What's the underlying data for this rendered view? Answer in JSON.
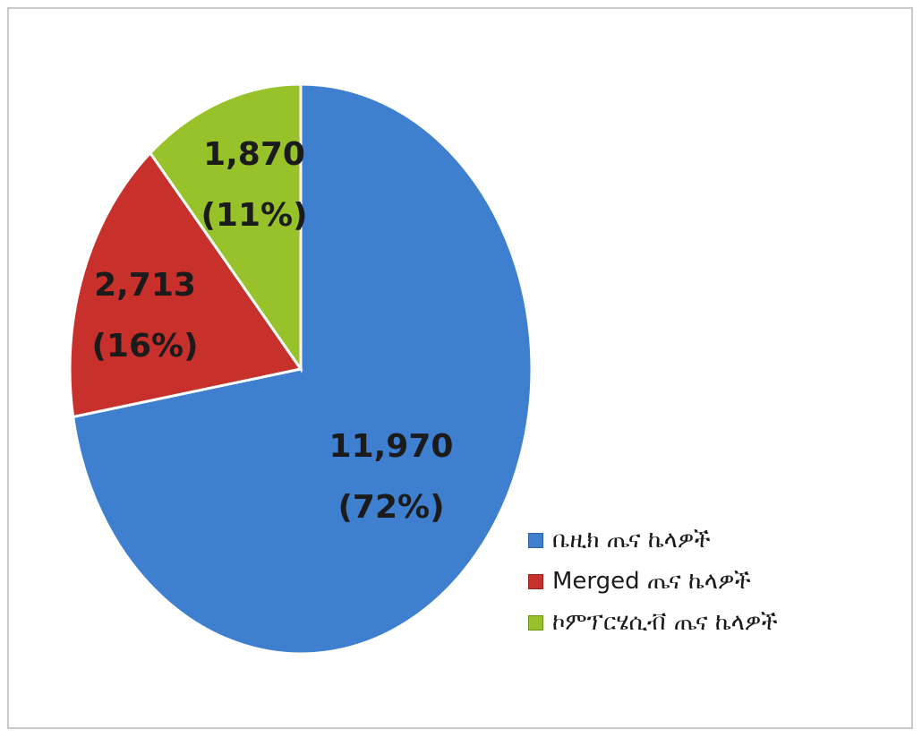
{
  "chart_data": {
    "type": "pie",
    "title": "",
    "slices": [
      {
        "name": "ቤዚክ ጤና ኬላዎች",
        "value": 11970,
        "value_label": "11,970",
        "percent_label": "(72%)",
        "color": "#3f7fd0"
      },
      {
        "name": "Merged ጤና ኬላዎች",
        "value": 2713,
        "value_label": "2,713",
        "percent_label": "(16%)",
        "color": "#c8302c"
      },
      {
        "name": "ኮምፕርሄሲቭ ጤና ኬላዎች",
        "value": 1870,
        "value_label": "1,870",
        "percent_label": "(11%)",
        "color": "#97c22a"
      }
    ],
    "legend_position": "bottom-right"
  }
}
